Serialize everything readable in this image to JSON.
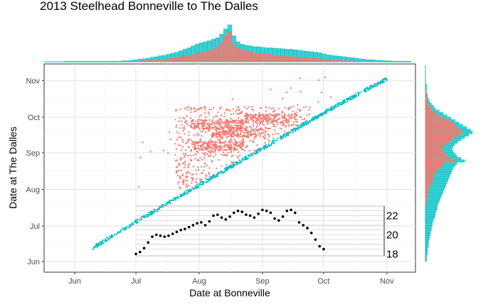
{
  "chart_data": {
    "type": "scatter",
    "title": "2013 Steelhead Bonneville to The Dalles",
    "xlabel": "Date at Bonneville",
    "ylabel": "Date at The Dalles",
    "x_ticks": [
      {
        "label": "Jun",
        "date": "2013-06-01"
      },
      {
        "label": "Jul",
        "date": "2013-07-01"
      },
      {
        "label": "Aug",
        "date": "2013-08-01"
      },
      {
        "label": "Sep",
        "date": "2013-09-01"
      },
      {
        "label": "Oct",
        "date": "2013-10-01"
      },
      {
        "label": "Nov",
        "date": "2013-11-01"
      }
    ],
    "y_ticks": [
      {
        "label": "Jun",
        "date": "2013-06-01"
      },
      {
        "label": "Jul",
        "date": "2013-07-01"
      },
      {
        "label": "Aug",
        "date": "2013-08-01"
      },
      {
        "label": "Sep",
        "date": "2013-09-01"
      },
      {
        "label": "Oct",
        "date": "2013-10-01"
      },
      {
        "label": "Nov",
        "date": "2013-11-01"
      }
    ],
    "xlim": [
      "2013-05-17",
      "2013-11-15"
    ],
    "ylim": [
      "2013-05-23",
      "2013-11-15"
    ],
    "grid": true,
    "series": [
      {
        "color": "#00BFC4",
        "description_of_points": "fish arriving at The Dalles 1-4 days after Bonneville",
        "band": [
          {
            "x": "2013-06-10",
            "y": "2013-06-12"
          },
          {
            "x": "2013-07-01",
            "y": "2013-07-04"
          },
          {
            "x": "2013-08-01",
            "y": "2013-08-04"
          },
          {
            "x": "2013-09-01",
            "y": "2013-09-04"
          },
          {
            "x": "2013-10-01",
            "y": "2013-10-04"
          },
          {
            "x": "2013-11-01",
            "y": "2013-11-02"
          }
        ]
      },
      {
        "color": "#F8766D",
        "description_of_points": "fish with longer travel times",
        "dense_region": {
          "x": [
            "2013-07-20",
            "2013-09-25"
          ],
          "y": [
            "2013-08-01",
            "2013-10-10"
          ]
        },
        "clusters": [
          {
            "x": "2013-08-10",
            "y": "2013-09-25"
          },
          {
            "x": "2013-08-10",
            "y": "2013-09-07"
          },
          {
            "x": "2013-08-20",
            "y": "2013-09-18"
          },
          {
            "x": "2013-09-05",
            "y": "2013-09-30"
          }
        ]
      }
    ],
    "inset_line": {
      "type": "line",
      "y_ticks": [
        "18",
        "20",
        "22"
      ],
      "ylim": [
        17.8,
        23.0
      ],
      "points": [
        [
          "2013-07-01",
          18.0
        ],
        [
          "2013-07-03",
          18.2
        ],
        [
          "2013-07-05",
          18.6
        ],
        [
          "2013-07-07",
          19.2
        ],
        [
          "2013-07-09",
          19.8
        ],
        [
          "2013-07-11",
          20.0
        ],
        [
          "2013-07-13",
          19.9
        ],
        [
          "2013-07-15",
          19.8
        ],
        [
          "2013-07-17",
          19.9
        ],
        [
          "2013-07-19",
          20.1
        ],
        [
          "2013-07-21",
          20.3
        ],
        [
          "2013-07-23",
          20.5
        ],
        [
          "2013-07-25",
          20.6
        ],
        [
          "2013-07-27",
          20.8
        ],
        [
          "2013-07-29",
          21.0
        ],
        [
          "2013-07-31",
          21.2
        ],
        [
          "2013-08-02",
          21.3
        ],
        [
          "2013-08-04",
          21.0
        ],
        [
          "2013-08-06",
          21.4
        ],
        [
          "2013-08-08",
          22.0
        ],
        [
          "2013-08-10",
          22.1
        ],
        [
          "2013-08-12",
          21.8
        ],
        [
          "2013-08-14",
          21.6
        ],
        [
          "2013-08-16",
          21.9
        ],
        [
          "2013-08-18",
          22.3
        ],
        [
          "2013-08-20",
          22.5
        ],
        [
          "2013-08-22",
          22.4
        ],
        [
          "2013-08-24",
          22.1
        ],
        [
          "2013-08-26",
          22.0
        ],
        [
          "2013-08-28",
          21.8
        ],
        [
          "2013-08-30",
          22.2
        ],
        [
          "2013-09-01",
          22.6
        ],
        [
          "2013-09-03",
          22.5
        ],
        [
          "2013-09-05",
          22.3
        ],
        [
          "2013-09-07",
          21.7
        ],
        [
          "2013-09-09",
          21.5
        ],
        [
          "2013-09-11",
          21.9
        ],
        [
          "2013-09-13",
          22.5
        ],
        [
          "2013-09-15",
          22.6
        ],
        [
          "2013-09-17",
          22.3
        ],
        [
          "2013-09-19",
          21.3
        ],
        [
          "2013-09-21",
          21.0
        ],
        [
          "2013-09-23",
          20.7
        ],
        [
          "2013-09-25",
          20.2
        ],
        [
          "2013-09-27",
          19.5
        ],
        [
          "2013-09-29",
          18.8
        ],
        [
          "2013-10-01",
          18.5
        ]
      ]
    },
    "top_histogram": {
      "bins_start": "2013-05-17",
      "bin_days": 2,
      "series": [
        {
          "color": "#F8766D",
          "counts": [
            0,
            0,
            0,
            0,
            0,
            0,
            0,
            0,
            0,
            0,
            0,
            0,
            0,
            0,
            0,
            0,
            0,
            0,
            0,
            0,
            0,
            1,
            1,
            2,
            2,
            3,
            3,
            4,
            4,
            5,
            6,
            7,
            8,
            10,
            12,
            13,
            14,
            16,
            18,
            20,
            22,
            25,
            30,
            38,
            52,
            60,
            34,
            28,
            24,
            22,
            20,
            18,
            17,
            16,
            15,
            14,
            13,
            12,
            12,
            11,
            10,
            10,
            9,
            9,
            8,
            8,
            7,
            6,
            5,
            4,
            4,
            3,
            3,
            2,
            2,
            2,
            1,
            1,
            1,
            1,
            1,
            1,
            1,
            0,
            0,
            0,
            0,
            0,
            0,
            0
          ]
        },
        {
          "color": "#00BFC4",
          "counts": [
            0,
            0,
            0,
            0,
            0,
            1,
            1,
            1,
            1,
            1,
            1,
            1,
            1,
            1,
            1,
            1,
            1,
            1,
            1,
            2,
            2,
            3,
            4,
            5,
            6,
            7,
            9,
            10,
            12,
            13,
            15,
            17,
            19,
            22,
            25,
            28,
            32,
            35,
            38,
            40,
            42,
            45,
            48,
            55,
            66,
            74,
            52,
            40,
            35,
            33,
            32,
            30,
            30,
            29,
            28,
            28,
            27,
            27,
            26,
            25,
            25,
            24,
            23,
            22,
            21,
            20,
            19,
            18,
            16,
            14,
            13,
            12,
            11,
            10,
            9,
            8,
            7,
            6,
            5,
            4,
            4,
            3,
            3,
            2,
            2,
            1,
            1,
            1,
            1,
            1
          ]
        }
      ]
    },
    "right_histogram": {
      "bins_start": "2013-06-01",
      "bin_days": 2,
      "series": [
        {
          "color": "#F8766D",
          "counts": [
            0,
            0,
            0,
            0,
            0,
            0,
            0,
            0,
            0,
            0,
            0,
            0,
            0,
            0,
            0,
            0,
            0,
            0,
            0,
            0,
            0,
            0,
            0,
            0,
            1,
            1,
            1,
            2,
            2,
            3,
            3,
            4,
            5,
            6,
            7,
            8,
            9,
            10,
            12,
            14,
            16,
            18,
            30,
            26,
            22,
            20,
            18,
            16,
            18,
            20,
            24,
            26,
            30,
            34,
            38,
            36,
            32,
            30,
            28,
            24,
            20,
            14,
            10,
            8,
            6,
            4,
            3,
            2,
            1,
            1,
            1,
            1,
            0,
            0,
            0,
            0,
            0,
            0,
            0,
            0,
            0,
            0,
            0
          ]
        },
        {
          "color": "#00BFC4",
          "counts": [
            1,
            1,
            1,
            2,
            2,
            2,
            3,
            3,
            3,
            4,
            4,
            5,
            5,
            6,
            6,
            7,
            7,
            8,
            9,
            10,
            10,
            11,
            12,
            12,
            13,
            14,
            15,
            16,
            17,
            18,
            19,
            20,
            21,
            22,
            23,
            24,
            25,
            26,
            27,
            28,
            30,
            32,
            40,
            36,
            32,
            30,
            28,
            27,
            28,
            30,
            33,
            36,
            40,
            44,
            48,
            46,
            42,
            38,
            34,
            30,
            26,
            22,
            18,
            14,
            10,
            8,
            6,
            4,
            3,
            2,
            2,
            1,
            1,
            1,
            1,
            0,
            0,
            0,
            0,
            0,
            0,
            0,
            0
          ]
        }
      ]
    }
  }
}
